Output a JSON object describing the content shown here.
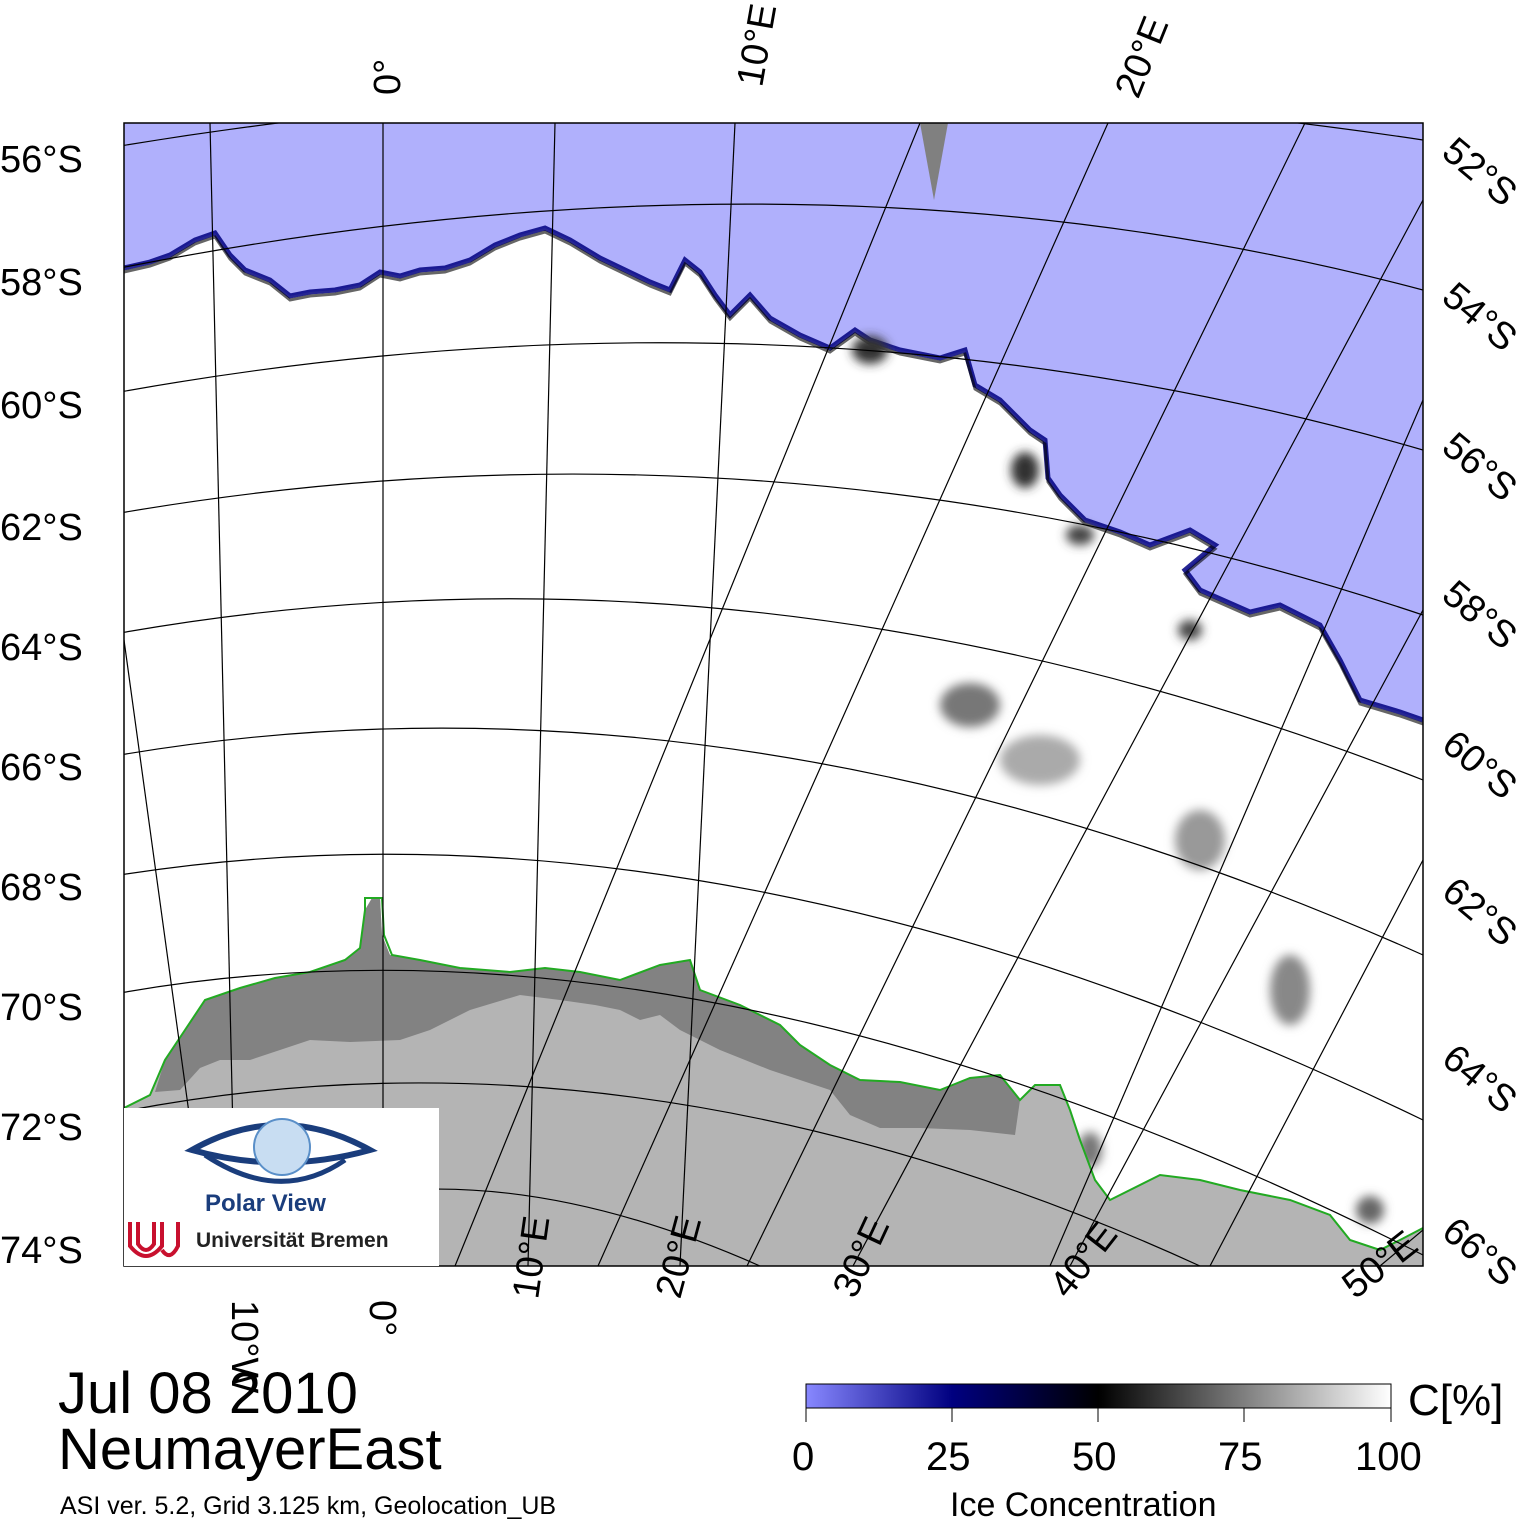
{
  "map": {
    "date": "Jul 08 2010",
    "region": "NeumayerEast",
    "footnote": "ASI ver. 5.2,  Grid 3.125 km, Geolocation_UB"
  },
  "labels": {
    "left_lat": [
      "56°S",
      "58°S",
      "60°S",
      "62°S",
      "64°S",
      "66°S",
      "68°S",
      "70°S",
      "72°S",
      "74°S"
    ],
    "right_lat": [
      "52°S",
      "54°S",
      "56°S",
      "58°S",
      "60°S",
      "62°S",
      "64°S",
      "66°S"
    ],
    "top_lon": [
      "0°",
      "10°E",
      "20°E"
    ],
    "bottom_lon": [
      "10°W",
      "0°",
      "10°E",
      "20°E",
      "30°E",
      "40°E",
      "50°E"
    ]
  },
  "colorbar": {
    "unit_label": "C[%]",
    "title": "Ice Concentration",
    "ticks": [
      "0",
      "25",
      "50",
      "75",
      "100"
    ],
    "stops": [
      {
        "value": 0,
        "color": "#8888ff"
      },
      {
        "value": 25,
        "color": "#000080"
      },
      {
        "value": 50,
        "color": "#000000"
      },
      {
        "value": 100,
        "color": "#ffffff"
      }
    ]
  },
  "colors": {
    "open_water": "#b0b0fc",
    "sea_ice": "#ffffff",
    "land": "#b4b4b4",
    "ice_shelf": "#808080",
    "coastline": "#22aa22",
    "ice_edge": "#000080"
  },
  "logo": {
    "name": "Polar View",
    "institution": "Universität Bremen"
  }
}
